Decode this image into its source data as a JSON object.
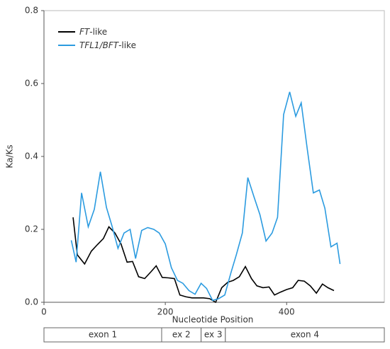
{
  "chart_data": {
    "type": "line",
    "x_label": "Nucleotide Position",
    "y_label": "Ka/Ks",
    "xlim": [
      0,
      561
    ],
    "ylim": [
      0,
      0.8
    ],
    "xticks": [
      0,
      200,
      400
    ],
    "yticks": [
      0.0,
      0.2,
      0.4,
      0.6,
      0.8
    ],
    "legend": "upper left",
    "series": [
      {
        "name": "FT-like",
        "color": "#000000",
        "x": [
          48,
          55,
          67,
          78,
          88,
          98,
          107,
          117,
          127,
          137,
          146,
          156,
          166,
          176,
          185,
          195,
          205,
          215,
          224,
          234,
          244,
          254,
          263,
          273,
          283,
          293,
          303,
          312,
          322,
          332,
          342,
          351,
          361,
          371,
          380,
          390,
          400,
          410,
          419,
          429,
          439,
          449,
          459,
          468,
          478
        ],
        "values": [
          0.233,
          0.13,
          0.105,
          0.14,
          0.158,
          0.175,
          0.207,
          0.19,
          0.16,
          0.11,
          0.112,
          0.07,
          0.065,
          0.083,
          0.1,
          0.068,
          0.067,
          0.065,
          0.02,
          0.015,
          0.012,
          0.012,
          0.012,
          0.01,
          0.0,
          0.04,
          0.055,
          0.06,
          0.07,
          0.098,
          0.065,
          0.045,
          0.04,
          0.042,
          0.02,
          0.028,
          0.035,
          0.04,
          0.06,
          0.058,
          0.045,
          0.025,
          0.05,
          0.04,
          0.032
        ]
      },
      {
        "name": "TFL1/BFT-like",
        "color": "#2b9be0",
        "x": [
          45,
          53,
          62,
          73,
          83,
          93,
          103,
          112,
          122,
          132,
          142,
          151,
          161,
          171,
          181,
          190,
          200,
          210,
          220,
          229,
          239,
          249,
          259,
          268,
          278,
          288,
          298,
          308,
          317,
          327,
          336,
          346,
          356,
          366,
          376,
          385,
          395,
          405,
          415,
          424,
          434,
          444,
          454,
          463,
          473,
          483,
          488
        ],
        "values": [
          0.17,
          0.11,
          0.3,
          0.207,
          0.255,
          0.358,
          0.26,
          0.21,
          0.148,
          0.19,
          0.2,
          0.12,
          0.197,
          0.205,
          0.2,
          0.19,
          0.16,
          0.095,
          0.06,
          0.052,
          0.032,
          0.022,
          0.052,
          0.038,
          0.005,
          0.01,
          0.02,
          0.08,
          0.13,
          0.19,
          0.342,
          0.29,
          0.24,
          0.168,
          0.19,
          0.233,
          0.515,
          0.577,
          0.51,
          0.547,
          0.42,
          0.3,
          0.308,
          0.258,
          0.152,
          0.162,
          0.105
        ]
      }
    ],
    "regions": [
      {
        "label": "exon 1",
        "start": 0,
        "end": 194
      },
      {
        "label": "ex 2",
        "start": 194,
        "end": 259
      },
      {
        "label": "ex 3",
        "start": 259,
        "end": 299
      },
      {
        "label": "exon 4",
        "start": 299,
        "end": 561
      }
    ]
  }
}
